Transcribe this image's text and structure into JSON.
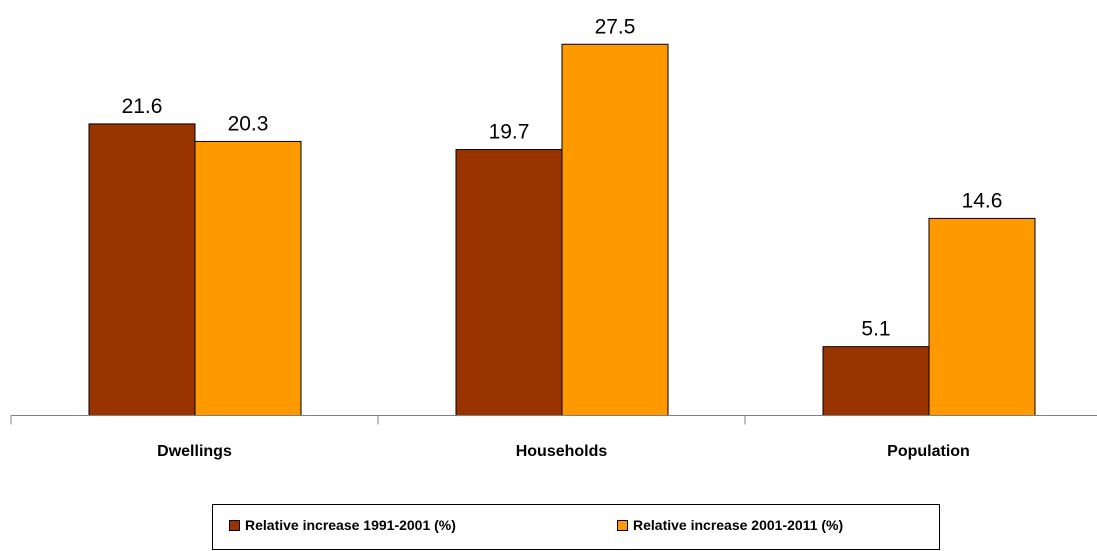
{
  "chart_data": {
    "type": "bar",
    "categories": [
      "Dwellings",
      "Households",
      "Population"
    ],
    "series": [
      {
        "name": "Relative increase 1991-2001 (%)",
        "values": [
          21.6,
          19.7,
          5.1
        ],
        "color": "#993300"
      },
      {
        "name": "Relative increase 2001-2011 (%)",
        "values": [
          20.3,
          27.5,
          14.6
        ],
        "color": "#FF9900"
      }
    ],
    "title": "",
    "xlabel": "",
    "ylabel": "",
    "ylim": [
      0,
      30
    ],
    "grid": false,
    "legend_position": "bottom"
  }
}
